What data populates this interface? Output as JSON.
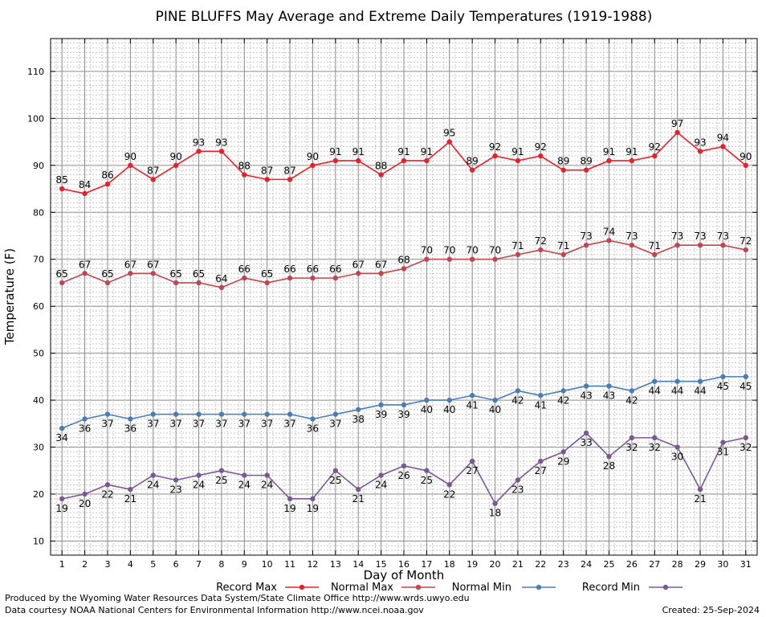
{
  "chart_data": {
    "type": "line",
    "title": "PINE BLUFFS May Average and Extreme Daily Temperatures (1919-1988)",
    "xlabel": "Day of Month",
    "ylabel": "Temperature (F)",
    "x": [
      1,
      2,
      3,
      4,
      5,
      6,
      7,
      8,
      9,
      10,
      11,
      12,
      13,
      14,
      15,
      16,
      17,
      18,
      19,
      20,
      21,
      22,
      23,
      24,
      25,
      26,
      27,
      28,
      29,
      30,
      31
    ],
    "ylim": [
      7,
      117
    ],
    "yticks": [
      10,
      20,
      30,
      40,
      50,
      60,
      70,
      80,
      90,
      100,
      110
    ],
    "grid": true,
    "legend_position": "bottom",
    "series": [
      {
        "name": "Record Max",
        "color": "#e8202a",
        "label_pos": "above",
        "values": [
          85,
          84,
          86,
          90,
          87,
          90,
          93,
          93,
          88,
          87,
          87,
          90,
          91,
          91,
          88,
          91,
          91,
          95,
          89,
          92,
          91,
          92,
          89,
          89,
          91,
          91,
          92,
          97,
          93,
          94,
          90
        ]
      },
      {
        "name": "Normal Max",
        "color": "#c0474f",
        "label_pos": "above",
        "values": [
          65,
          67,
          65,
          67,
          67,
          65,
          65,
          64,
          66,
          65,
          66,
          66,
          66,
          67,
          67,
          68,
          70,
          70,
          70,
          70,
          71,
          72,
          71,
          73,
          74,
          73,
          71,
          73,
          73,
          73,
          72
        ]
      },
      {
        "name": "Normal Min",
        "color": "#4a7db5",
        "label_pos": "below",
        "values": [
          34,
          36,
          37,
          36,
          37,
          37,
          37,
          37,
          37,
          37,
          37,
          36,
          37,
          38,
          39,
          39,
          40,
          40,
          41,
          40,
          42,
          41,
          42,
          43,
          43,
          42,
          44,
          44,
          44,
          45,
          45
        ]
      },
      {
        "name": "Record Min",
        "color": "#7b5796",
        "label_pos": "below",
        "values": [
          19,
          20,
          22,
          21,
          24,
          23,
          24,
          25,
          24,
          24,
          19,
          19,
          25,
          21,
          24,
          26,
          25,
          22,
          27,
          18,
          23,
          27,
          29,
          33,
          28,
          32,
          32,
          30,
          21,
          31,
          32
        ]
      }
    ]
  },
  "footer": {
    "produced_by": "Produced by the Wyoming Water Resources Data System/State Climate Office http://www.wrds.uwyo.edu",
    "data_courtesy": "Data courtesy NOAA National Centers for Environmental Information http://www.ncei.noaa.gov",
    "created": "Created:  25-Sep-2024"
  }
}
